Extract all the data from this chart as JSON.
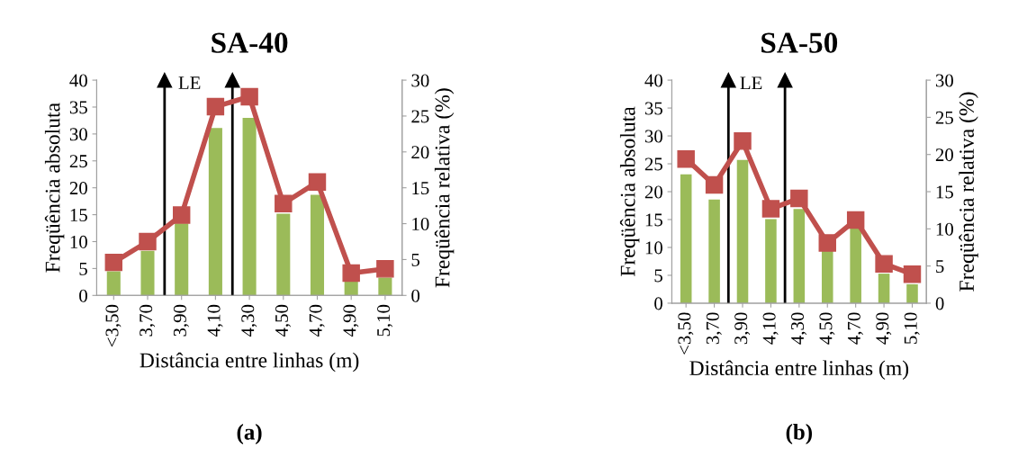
{
  "chart_data": [
    {
      "type": "bar",
      "title": "SA-40",
      "xlabel": "Distância entre linhas (m)",
      "ylabel": "Freqüência absoluta",
      "y2label": "Freqüência relativa (%)",
      "x": [
        3.5,
        3.7,
        3.9,
        4.1,
        4.3,
        4.5,
        4.7,
        4.9,
        5.1
      ],
      "xlim": [
        3.4,
        5.2
      ],
      "xticks": [
        {
          "value": 3.5,
          "label": "<3,50"
        },
        {
          "value": 3.7,
          "label": "3,70"
        },
        {
          "value": 3.9,
          "label": "3,90"
        },
        {
          "value": 4.1,
          "label": "4,10"
        },
        {
          "value": 4.3,
          "label": "4,30"
        },
        {
          "value": 4.5,
          "label": "4,50"
        },
        {
          "value": 4.7,
          "label": "4,70"
        },
        {
          "value": 4.9,
          "label": "4,90"
        },
        {
          "value": 5.1,
          "label": "5,10"
        }
      ],
      "series": [
        {
          "color": "#9bbb59",
          "values": [
            4.5,
            8.3,
            13.4,
            31.1,
            33.0,
            15.2,
            18.7,
            3.0,
            3.3
          ]
        },
        {
          "type": "line",
          "axis": "y2",
          "color": "#c0504d",
          "marker": "square",
          "values": [
            4.6,
            7.5,
            11.2,
            26.3,
            27.7,
            12.8,
            15.8,
            3.1,
            3.7
          ]
        }
      ],
      "ylim": [
        0,
        40
      ],
      "yticks": [
        0,
        5,
        10,
        15,
        20,
        25,
        30,
        35,
        40
      ],
      "y2lim": [
        0,
        30
      ],
      "y2ticks": [
        0,
        5,
        10,
        15,
        20,
        25,
        30
      ],
      "ref_lines": [
        {
          "axis": "x",
          "value": 3.8,
          "label": "LE",
          "color": "#000000"
        },
        {
          "axis": "x",
          "value": 4.2,
          "color": "#000000"
        }
      ],
      "annotations": [
        "(a)"
      ],
      "grid": false,
      "legend": false
    },
    {
      "type": "bar",
      "title": "SA-50",
      "xlabel": "Distância entre linhas (m)",
      "ylabel": "Freqüência absoluta",
      "y2label": "Freqüência relativa (%)",
      "x": [
        3.5,
        3.7,
        3.9,
        4.1,
        4.3,
        4.5,
        4.7,
        4.9,
        5.1
      ],
      "xlim": [
        3.4,
        5.2
      ],
      "xticks": [
        {
          "value": 3.5,
          "label": "<3,50"
        },
        {
          "value": 3.7,
          "label": "3,70"
        },
        {
          "value": 3.9,
          "label": "3,90"
        },
        {
          "value": 4.1,
          "label": "4,10"
        },
        {
          "value": 4.3,
          "label": "4,30"
        },
        {
          "value": 4.5,
          "label": "4,50"
        },
        {
          "value": 4.7,
          "label": "4,70"
        },
        {
          "value": 4.9,
          "label": "4,90"
        },
        {
          "value": 5.1,
          "label": "5,10"
        }
      ],
      "series": [
        {
          "color": "#9bbb59",
          "values": [
            23.1,
            18.6,
            25.7,
            15.1,
            16.9,
            9.6,
            13.4,
            5.3,
            3.4
          ]
        },
        {
          "type": "line",
          "axis": "y2",
          "color": "#c0504d",
          "marker": "square",
          "values": [
            19.4,
            15.9,
            21.8,
            12.7,
            14.1,
            8.1,
            11.2,
            5.3,
            3.9
          ]
        }
      ],
      "ylim": [
        0,
        40
      ],
      "yticks": [
        0,
        5,
        10,
        15,
        20,
        25,
        30,
        35,
        40
      ],
      "y2lim": [
        0,
        30
      ],
      "y2ticks": [
        0,
        5,
        10,
        15,
        20,
        25,
        30
      ],
      "ref_lines": [
        {
          "axis": "x",
          "value": 3.8,
          "label": "LE",
          "color": "#000000"
        },
        {
          "axis": "x",
          "value": 4.2,
          "color": "#000000"
        }
      ],
      "annotations": [
        "(b)"
      ],
      "grid": false,
      "legend": false
    }
  ]
}
